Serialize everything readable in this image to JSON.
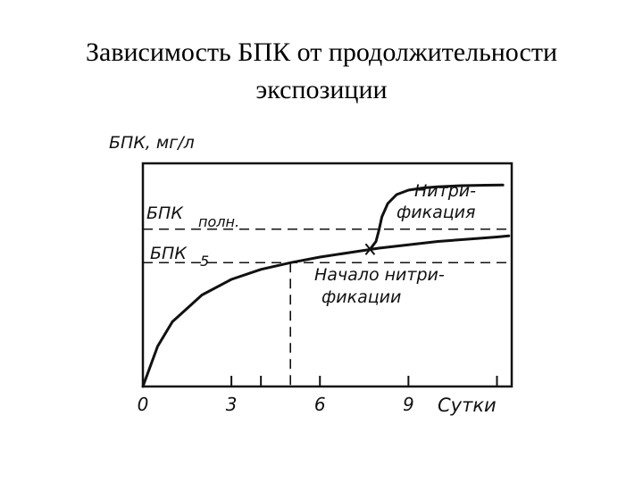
{
  "slide": {
    "title_line1": "Зависимость БПК от продолжительности",
    "title_line2": "экспозиции"
  },
  "chart_data": {
    "type": "line",
    "ylabel": "БПК, мг/л",
    "xlabel": "Сутки",
    "x_ticks": [
      "0",
      "3",
      "6",
      "9"
    ],
    "xlim": [
      0,
      12.5
    ],
    "ylim": [
      0,
      10
    ],
    "grid": false,
    "series": [
      {
        "name": "",
        "x": [
          0,
          0.5,
          1,
          2,
          3,
          4,
          5,
          6,
          7,
          8,
          9,
          10,
          11,
          12,
          12.4
        ],
        "y": [
          0,
          1.8,
          2.9,
          4.1,
          4.8,
          5.25,
          5.55,
          5.8,
          6.0,
          6.2,
          6.35,
          6.5,
          6.6,
          6.7,
          6.75
        ]
      },
      {
        "name": "",
        "x": [
          7.7,
          7.9,
          8.0,
          8.1,
          8.3,
          8.6,
          9.0,
          9.5,
          10.0,
          10.8,
          11.6,
          12.2
        ],
        "y": [
          6.15,
          6.5,
          7.0,
          7.6,
          8.2,
          8.6,
          8.8,
          8.9,
          8.95,
          9.0,
          9.02,
          9.03
        ]
      }
    ],
    "reference_lines": [
      {
        "label_main": "БПК",
        "label_sub": "полн.",
        "y": 7.05
      },
      {
        "label_main": "БПК",
        "label_sub": "5",
        "y": 5.55
      }
    ],
    "x_reference_line": {
      "x": 5
    },
    "annotations": [
      {
        "line1": "Нитри-",
        "line2": "фикация"
      },
      {
        "line1": "Начало нитри-",
        "line2": "фикации"
      }
    ],
    "annotation_marker": {
      "x": 7.7,
      "y": 6.15
    }
  }
}
